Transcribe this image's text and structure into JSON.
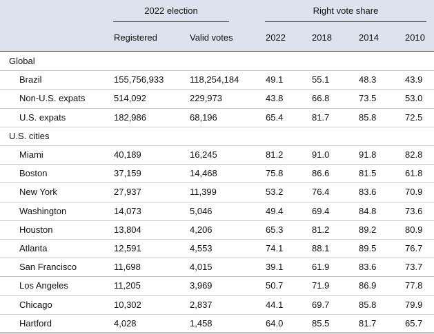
{
  "header": {
    "group_election": "2022 election",
    "group_vote": "Right vote share",
    "columns": [
      "Registered",
      "Valid votes",
      "2022",
      "2018",
      "2014",
      "2010"
    ]
  },
  "sections": [
    {
      "title": "Global",
      "rows": [
        {
          "name": "Brazil",
          "values": [
            "155,756,933",
            "118,254,184",
            "49.1",
            "55.1",
            "48.3",
            "43.9"
          ]
        },
        {
          "name": "Non-U.S. expats",
          "values": [
            "514,092",
            "229,973",
            "43.8",
            "66.8",
            "73.5",
            "53.0"
          ]
        },
        {
          "name": "U.S. expats",
          "values": [
            "182,986",
            "68,196",
            "65.4",
            "81.7",
            "85.8",
            "72.5"
          ]
        }
      ]
    },
    {
      "title": "U.S. cities",
      "rows": [
        {
          "name": "Miami",
          "values": [
            "40,189",
            "16,245",
            "81.2",
            "91.0",
            "91.8",
            "82.8"
          ]
        },
        {
          "name": "Boston",
          "values": [
            "37,159",
            "14,468",
            "75.8",
            "86.6",
            "81.5",
            "61.8"
          ]
        },
        {
          "name": "New York",
          "values": [
            "27,937",
            "11,399",
            "53.2",
            "76.4",
            "83.6",
            "70.9"
          ]
        },
        {
          "name": "Washington",
          "values": [
            "14,073",
            "5,046",
            "49.4",
            "69.4",
            "84.8",
            "73.6"
          ]
        },
        {
          "name": "Houston",
          "values": [
            "13,804",
            "4,206",
            "65.3",
            "81.2",
            "89.2",
            "80.9"
          ]
        },
        {
          "name": "Atlanta",
          "values": [
            "12,591",
            "4,553",
            "74.1",
            "88.1",
            "89.5",
            "76.7"
          ]
        },
        {
          "name": "San Francisco",
          "values": [
            "11,698",
            "4,015",
            "39.1",
            "61.9",
            "83.6",
            "73.7"
          ]
        },
        {
          "name": "Los Angeles",
          "values": [
            "11,205",
            "3,969",
            "50.7",
            "71.9",
            "86.9",
            "77.8"
          ]
        },
        {
          "name": "Chicago",
          "values": [
            "10,302",
            "2,837",
            "44.1",
            "69.7",
            "85.8",
            "79.9"
          ]
        },
        {
          "name": "Hartford",
          "values": [
            "4,028",
            "1,458",
            "64.0",
            "85.5",
            "81.7",
            "65.7"
          ]
        }
      ]
    }
  ]
}
